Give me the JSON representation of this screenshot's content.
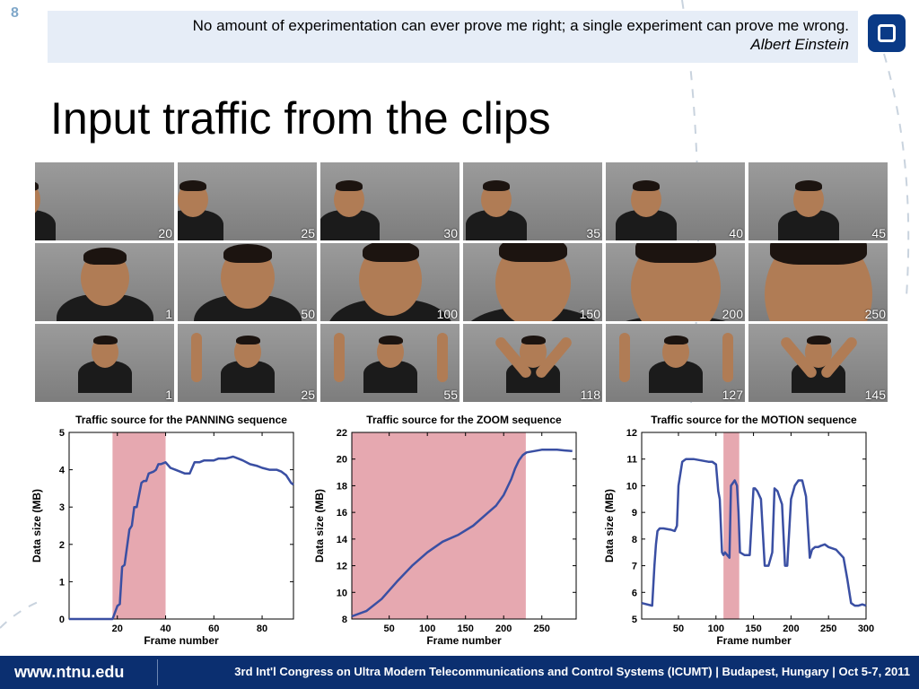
{
  "slide": {
    "number": "8"
  },
  "quote": {
    "text": "No amount of experimentation can ever prove me right; a single experiment can prove me wrong.",
    "author": "Albert Einstein"
  },
  "title": "Input traffic from the clips",
  "frames": {
    "rows": [
      {
        "sequence": "panning",
        "labels": [
          "20",
          "25",
          "30",
          "35",
          "40",
          "45"
        ]
      },
      {
        "sequence": "zoom",
        "labels": [
          "1",
          "50",
          "100",
          "150",
          "200",
          "250"
        ]
      },
      {
        "sequence": "motion",
        "labels": [
          "1",
          "25",
          "55",
          "118",
          "127",
          "145"
        ]
      }
    ]
  },
  "chart_data": [
    {
      "type": "line",
      "title": "Traffic source for the PANNING sequence",
      "xlabel": "Frame number",
      "ylabel": "Data size (MB)",
      "xlim": [
        0,
        93
      ],
      "ylim": [
        0,
        5
      ],
      "xticks": [
        20,
        40,
        60,
        80
      ],
      "yticks": [
        0,
        1,
        2,
        3,
        4,
        5
      ],
      "highlight": [
        18,
        40
      ],
      "series_color": "#3a4fa3",
      "highlight_color": "#e6a8b0",
      "x": [
        0,
        18,
        20,
        21,
        22,
        23,
        25,
        26,
        27,
        28,
        30,
        31,
        32,
        33,
        35,
        36,
        37,
        38,
        40,
        42,
        44,
        46,
        48,
        50,
        52,
        54,
        56,
        58,
        60,
        62,
        65,
        68,
        70,
        72,
        75,
        78,
        80,
        83,
        86,
        88,
        90,
        92,
        93
      ],
      "y": [
        0,
        0,
        0.35,
        0.4,
        1.4,
        1.45,
        2.4,
        2.5,
        3.0,
        3.0,
        3.65,
        3.7,
        3.7,
        3.9,
        3.95,
        4.0,
        4.15,
        4.15,
        4.2,
        4.05,
        4.0,
        3.95,
        3.9,
        3.9,
        4.2,
        4.2,
        4.25,
        4.25,
        4.25,
        4.3,
        4.3,
        4.35,
        4.3,
        4.25,
        4.15,
        4.1,
        4.05,
        4.0,
        4.0,
        3.95,
        3.85,
        3.65,
        3.6
      ]
    },
    {
      "type": "line",
      "title": "Traffic source for the ZOOM sequence",
      "xlabel": "Frame number",
      "ylabel": "Data size (MB)",
      "xlim": [
        1,
        295
      ],
      "ylim": [
        8,
        22
      ],
      "xticks": [
        50,
        100,
        150,
        200,
        250
      ],
      "yticks": [
        8,
        10,
        12,
        14,
        16,
        18,
        20,
        22
      ],
      "highlight": [
        1,
        229
      ],
      "series_color": "#3a4fa3",
      "highlight_color": "#e6a8b0",
      "x": [
        1,
        20,
        40,
        60,
        80,
        100,
        120,
        140,
        160,
        180,
        190,
        200,
        210,
        215,
        220,
        225,
        230,
        240,
        250,
        260,
        270,
        280,
        290
      ],
      "y": [
        8.2,
        8.6,
        9.5,
        10.8,
        12.0,
        13.0,
        13.8,
        14.3,
        15.0,
        16.0,
        16.5,
        17.3,
        18.5,
        19.3,
        19.9,
        20.3,
        20.5,
        20.6,
        20.7,
        20.7,
        20.7,
        20.65,
        20.6
      ]
    },
    {
      "type": "line",
      "title": "Traffic source for the MOTION sequence",
      "xlabel": "Frame number",
      "ylabel": "Data size (MB)",
      "xlim": [
        1,
        300
      ],
      "ylim": [
        5,
        12
      ],
      "xticks": [
        50,
        100,
        150,
        200,
        250,
        300
      ],
      "yticks": [
        5,
        6,
        7,
        8,
        9,
        10,
        11,
        12
      ],
      "highlight": [
        110,
        131
      ],
      "series_color": "#3a4fa3",
      "highlight_color": "#e6a8b0",
      "x": [
        1,
        15,
        18,
        20,
        22,
        25,
        30,
        40,
        45,
        48,
        50,
        55,
        60,
        70,
        80,
        90,
        95,
        100,
        103,
        105,
        108,
        110,
        112,
        115,
        118,
        120,
        125,
        128,
        130,
        132,
        138,
        145,
        150,
        152,
        155,
        160,
        165,
        170,
        175,
        178,
        182,
        188,
        192,
        195,
        200,
        205,
        210,
        215,
        220,
        225,
        228,
        232,
        236,
        240,
        245,
        250,
        260,
        270,
        275,
        280,
        285,
        290,
        295,
        300
      ],
      "y": [
        5.6,
        5.5,
        7.0,
        7.8,
        8.3,
        8.4,
        8.4,
        8.35,
        8.3,
        8.5,
        10.0,
        10.9,
        11.0,
        11.0,
        10.95,
        10.9,
        10.9,
        10.8,
        9.8,
        9.5,
        7.5,
        7.4,
        7.5,
        7.4,
        7.3,
        10.0,
        10.2,
        10.0,
        9.0,
        7.5,
        7.4,
        7.4,
        9.9,
        9.9,
        9.8,
        9.5,
        7.0,
        7.0,
        7.5,
        9.9,
        9.8,
        9.3,
        7.0,
        7.0,
        9.5,
        10.0,
        10.2,
        10.2,
        9.6,
        7.3,
        7.6,
        7.7,
        7.7,
        7.75,
        7.8,
        7.7,
        7.6,
        7.3,
        6.5,
        5.6,
        5.5,
        5.5,
        5.55,
        5.5
      ]
    }
  ],
  "footer": {
    "url": "www.ntnu.edu",
    "conference": "3rd Int'l Congress on Ultra Modern Telecommunications and Control Systems (ICUMT) | Budapest, Hungary | Oct 5-7, 2011"
  },
  "colors": {
    "footer_bg": "#0b2f70",
    "quote_bg": "#e6edf7",
    "logo_bg": "#0a3a86"
  }
}
